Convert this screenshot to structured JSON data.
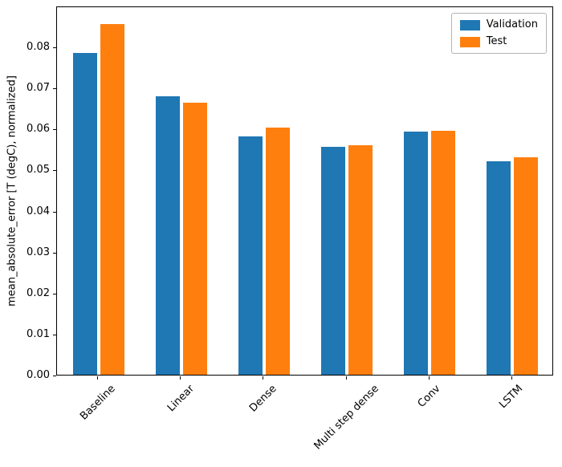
{
  "chart_data": {
    "type": "bar",
    "title": "",
    "xlabel": "",
    "ylabel": "mean_absolute_error [T (degC), normalized]",
    "categories": [
      "Baseline",
      "Linear",
      "Dense",
      "Multi step dense",
      "Conv",
      "LSTM"
    ],
    "series": [
      {
        "name": "Validation",
        "color": "#1f77b4",
        "values": [
          0.0785,
          0.0678,
          0.0581,
          0.0556,
          0.0593,
          0.0521
        ]
      },
      {
        "name": "Test",
        "color": "#ff7f0e",
        "values": [
          0.0855,
          0.0663,
          0.0603,
          0.056,
          0.0595,
          0.0531
        ]
      }
    ],
    "ylim": [
      0,
      0.09
    ],
    "yticks": [
      0,
      0.01,
      0.02,
      0.03,
      0.04,
      0.05,
      0.06,
      0.07,
      0.08
    ],
    "grid": false,
    "legend_position": "upper right"
  },
  "colors": {
    "axis": "#000000",
    "legend_border": "#b4b4b4",
    "background": "#ffffff"
  }
}
